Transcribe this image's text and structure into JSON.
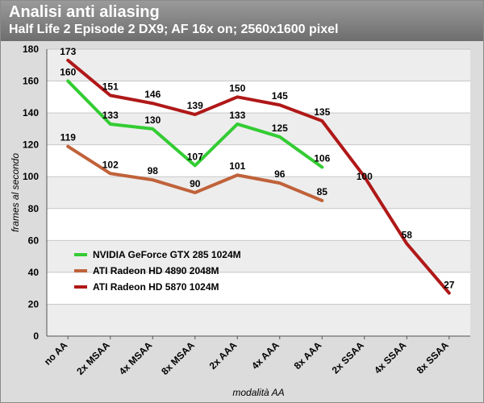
{
  "chart_data": {
    "type": "line",
    "title": "Analisi anti aliasing",
    "subtitle": "Half Life 2 Episode 2 DX9; AF 16x on; 2560x1600 pixel",
    "xlabel": "modalità AA",
    "ylabel": "frames al secondo",
    "ylim": [
      0,
      180
    ],
    "yticks": [
      0,
      20,
      40,
      60,
      80,
      100,
      120,
      140,
      160,
      180
    ],
    "grid": true,
    "legend_position": "left",
    "categories": [
      "no AA",
      "2x MSAA",
      "4x MSAA",
      "8x MSAA",
      "2x AAA",
      "4x AAA",
      "8x AAA",
      "2x SSAA",
      "4x SSAA",
      "8x SSAA"
    ],
    "series": [
      {
        "name": "NVIDIA GeForce GTX 285 1024M",
        "color": "#33cc33",
        "values": [
          160,
          133,
          130,
          107,
          133,
          125,
          106,
          null,
          null,
          null
        ]
      },
      {
        "name": "ATI Radeon HD 4890 2048M",
        "color": "#c0623a",
        "values": [
          119,
          102,
          98,
          90,
          101,
          96,
          85,
          null,
          null,
          null
        ]
      },
      {
        "name": "ATI Radeon HD 5870 1024M",
        "color": "#b01818",
        "values": [
          173,
          151,
          146,
          139,
          150,
          145,
          135,
          100,
          58,
          27
        ]
      }
    ]
  }
}
